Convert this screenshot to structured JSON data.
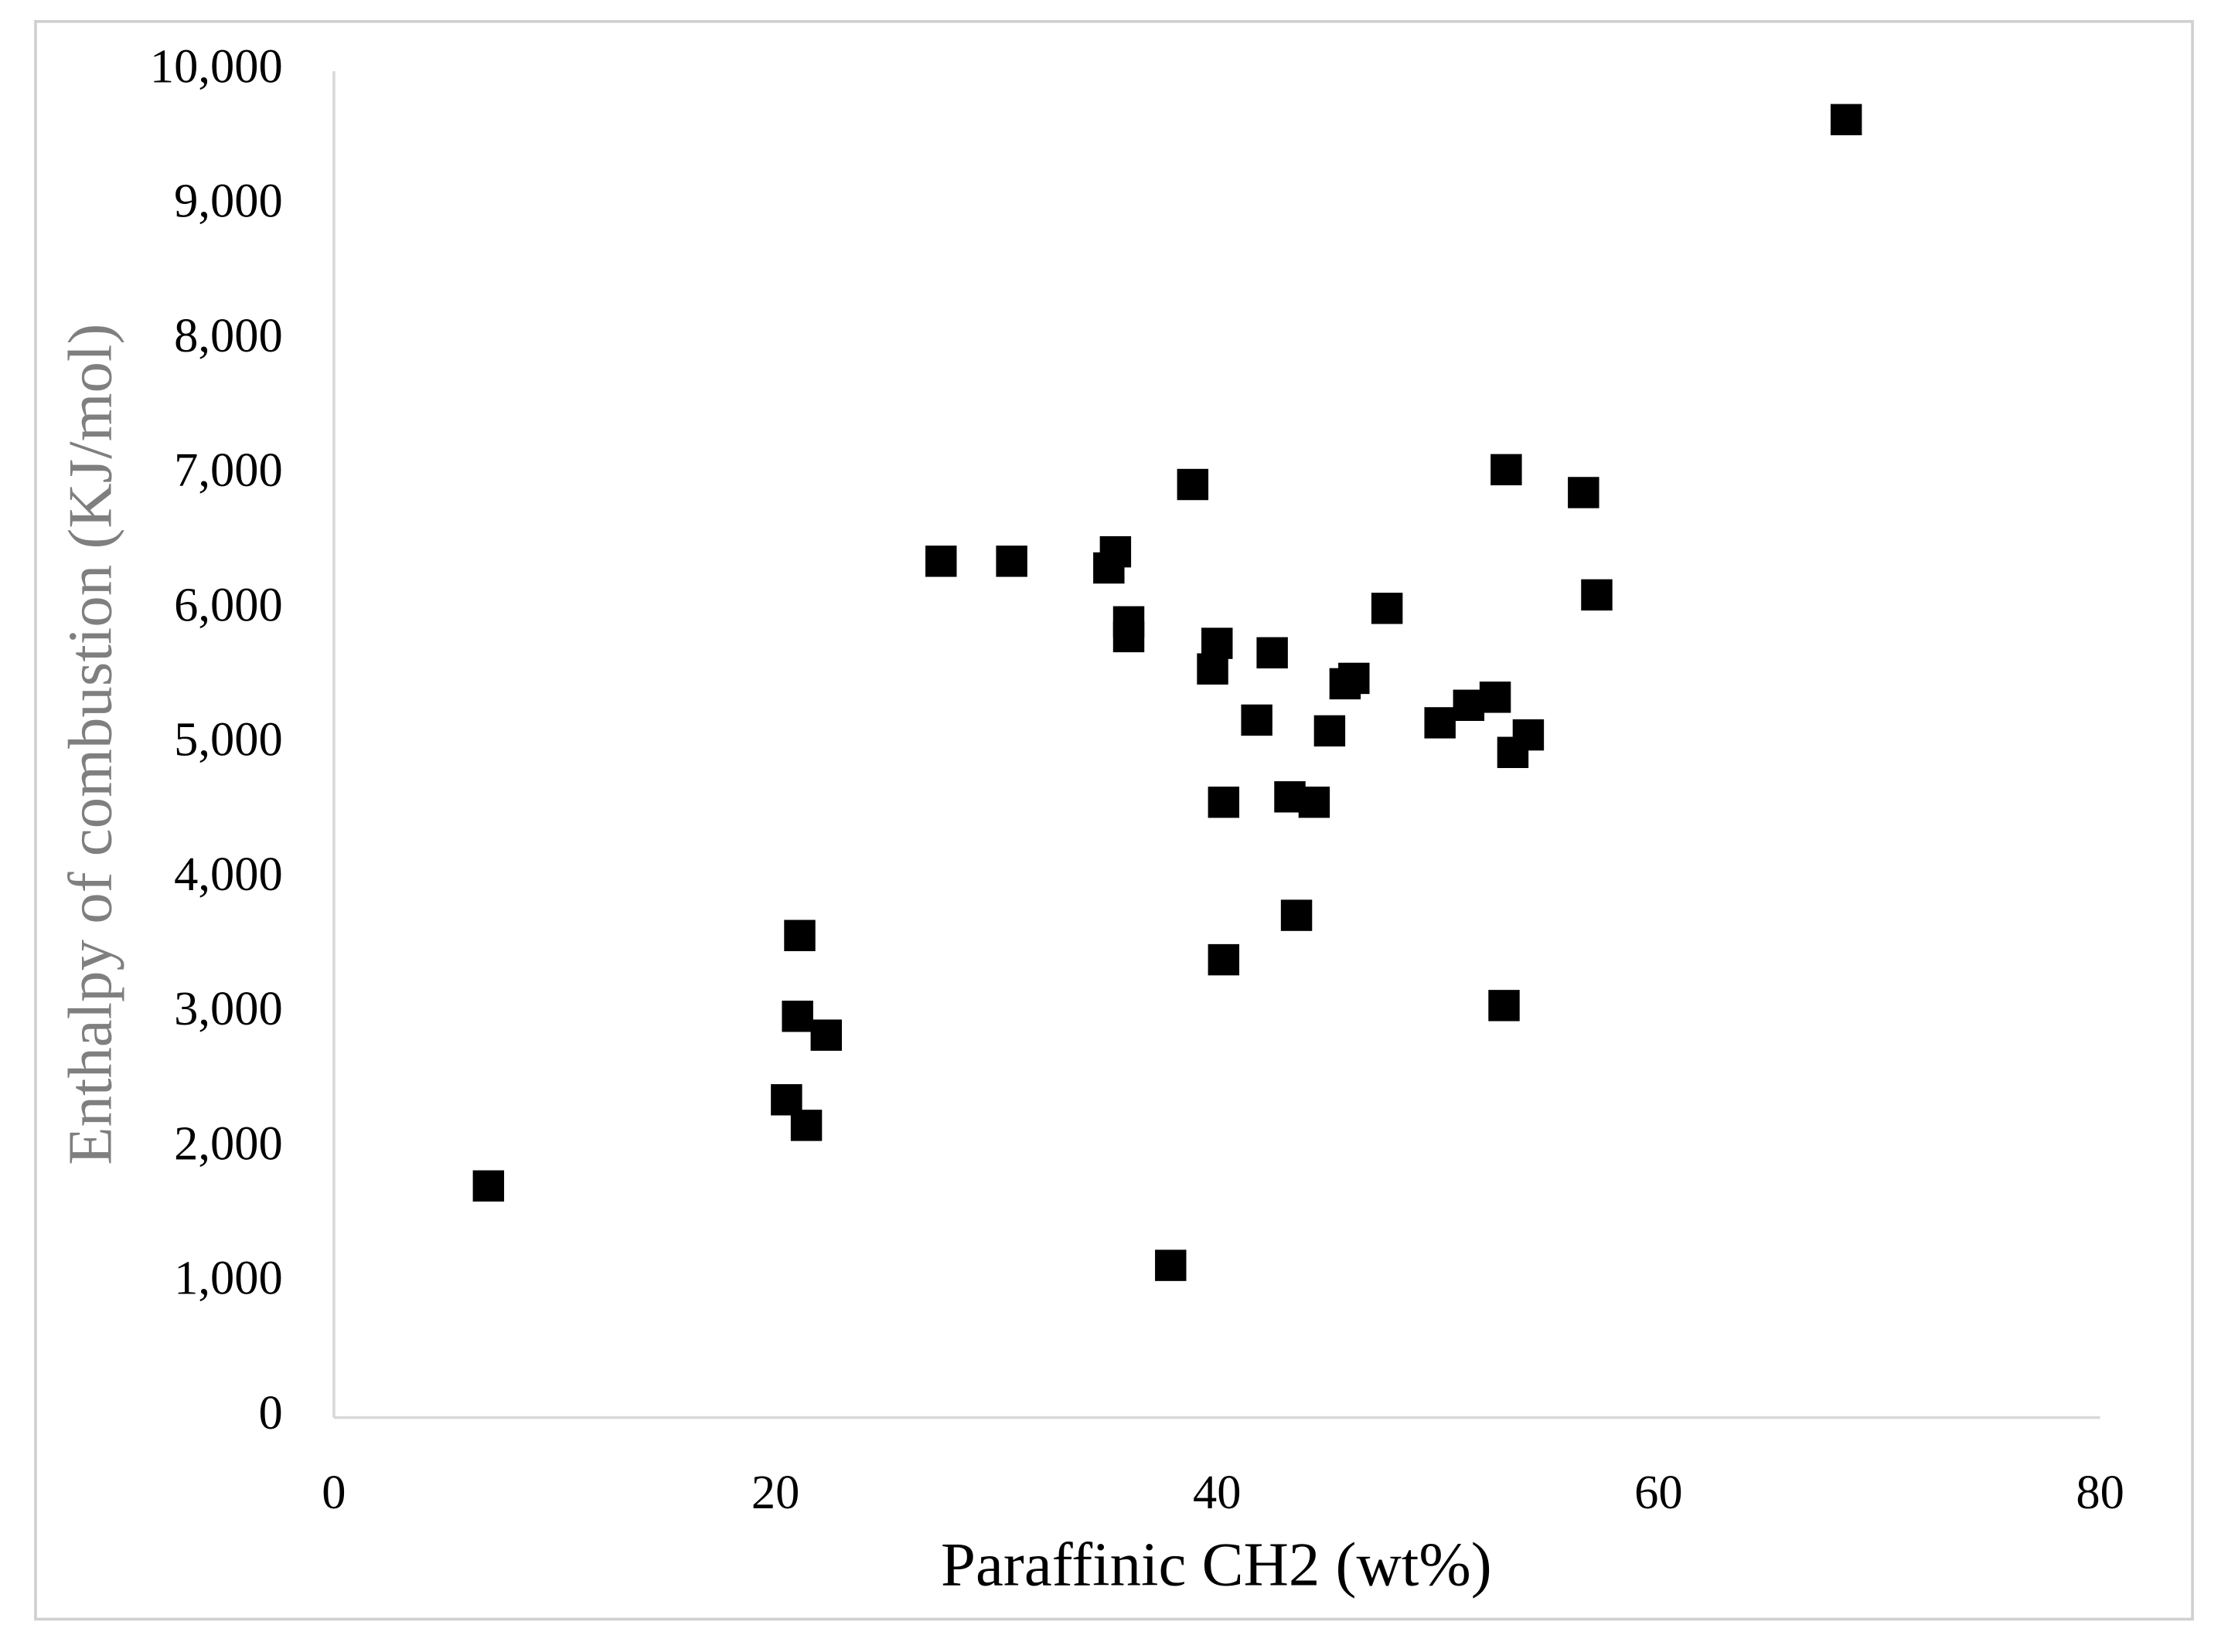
{
  "chart_data": {
    "type": "scatter",
    "xlabel": "Paraffinic CH2 (wt%)",
    "ylabel": "Enthalpy of combustion (KJ/mol)",
    "color": "#000000",
    "grid": false,
    "xlim": [
      0,
      80
    ],
    "xticks": [
      0,
      20,
      40,
      60,
      80
    ],
    "ylim": [
      0,
      10000
    ],
    "yticks": [
      0,
      {
        "value": 1000,
        "label": "1,000"
      },
      {
        "value": 2000,
        "label": "2,000"
      },
      {
        "value": 3000,
        "label": "3,000"
      },
      {
        "value": 4000,
        "label": "4,000"
      },
      {
        "value": 5000,
        "label": "5,000"
      },
      {
        "value": 6000,
        "label": "6,000"
      },
      {
        "value": 7000,
        "label": "7,000"
      },
      {
        "value": 8000,
        "label": "8,000"
      },
      {
        "value": 9000,
        "label": "9,000"
      },
      {
        "value": 10000,
        "label": "10,000"
      }
    ],
    "x": [
      7,
      68.5,
      53.1,
      38.9,
      56.6,
      27.5,
      30.7,
      35.4,
      35.1,
      47.7,
      57.2,
      36.0,
      36.0,
      40.0,
      39.8,
      42.5,
      45.8,
      46.2,
      41.8,
      45.1,
      50.1,
      51.4,
      52.6,
      54.1,
      53.4,
      40.3,
      43.3,
      44.4,
      43.6,
      21.1,
      40.3,
      53.0,
      21.0,
      22.3,
      20.5,
      21.4,
      37.9
    ],
    "values": [
      1720,
      9640,
      7040,
      6930,
      6870,
      6360,
      6360,
      6430,
      6310,
      6010,
      6110,
      5910,
      5800,
      5750,
      5560,
      5680,
      5450,
      5490,
      5180,
      5100,
      5160,
      5290,
      5350,
      5070,
      4940,
      4570,
      4610,
      4570,
      3730,
      3580,
      3400,
      3060,
      2980,
      2840,
      2360,
      2170,
      1130
    ]
  }
}
